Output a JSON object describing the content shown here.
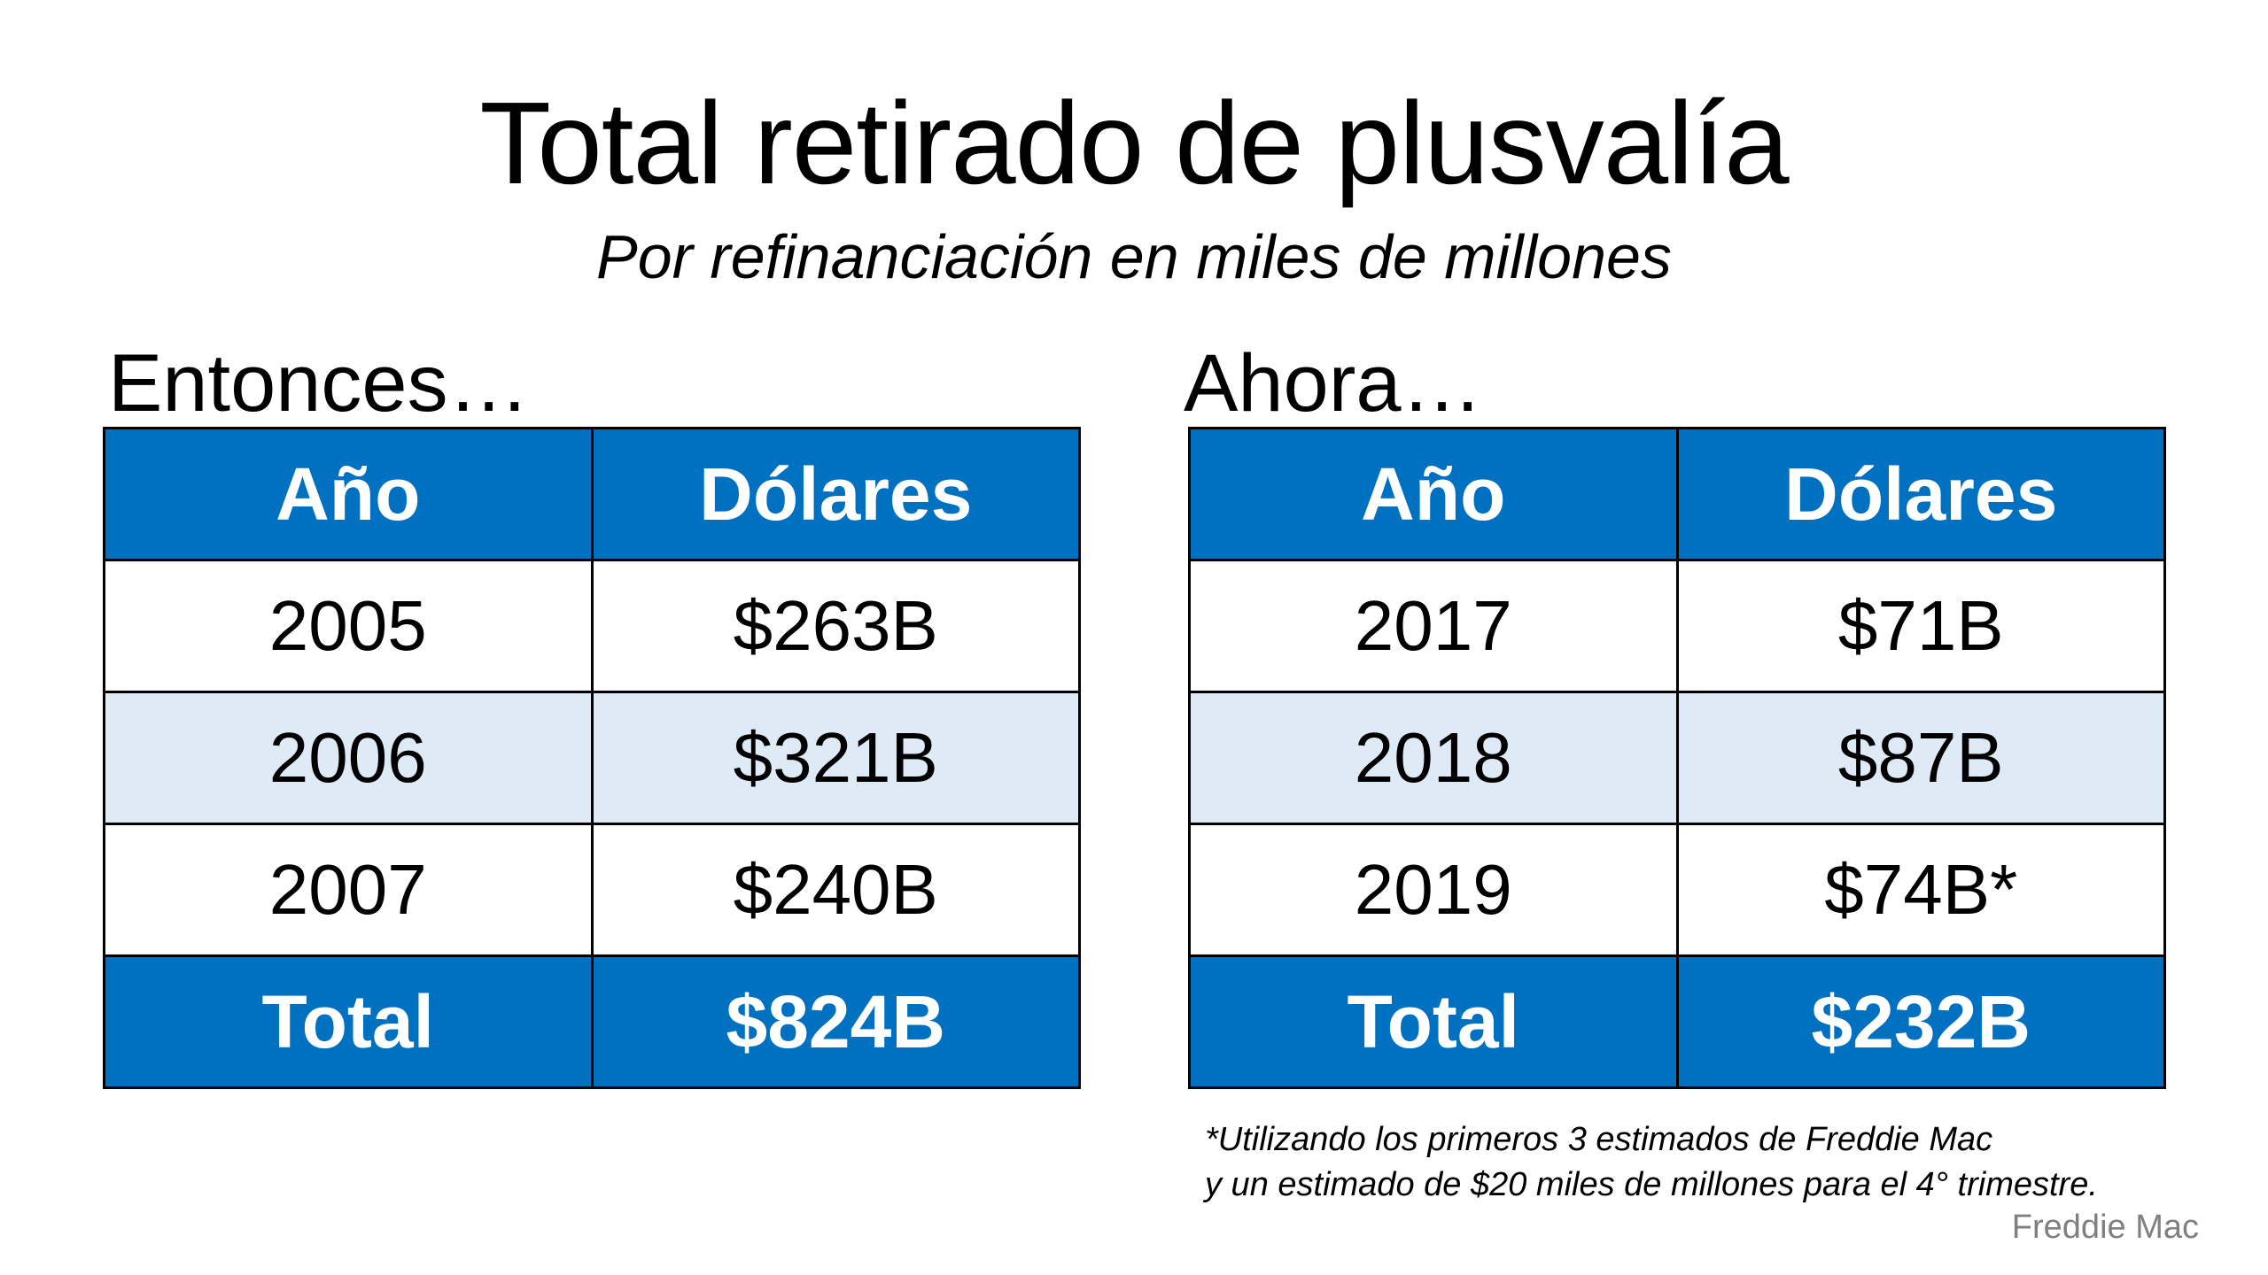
{
  "title": "Total retirado de plusvalía",
  "subtitle": "Por refinanciación en miles de millones",
  "tables": [
    {
      "heading": "Entonces…",
      "columns": [
        "Año",
        "Dólares"
      ],
      "rows": [
        [
          "2005",
          "$263B"
        ],
        [
          "2006",
          "$321B"
        ],
        [
          "2007",
          "$240B"
        ]
      ],
      "total": [
        "Total",
        "$824B"
      ]
    },
    {
      "heading": "Ahora…",
      "columns": [
        "Año",
        "Dólares"
      ],
      "rows": [
        [
          "2017",
          "$71B"
        ],
        [
          "2018",
          "$87B"
        ],
        [
          "2019",
          "$74B*"
        ]
      ],
      "total": [
        "Total",
        "$232B"
      ]
    }
  ],
  "footnote": [
    "*Utilizando los primeros 3 estimados de Freddie Mac",
    "y un estimado de $20 miles de millones para el 4° trimestre."
  ],
  "source": "Freddie Mac",
  "colors": {
    "header_blue": "#0070C0",
    "alt_row": "#DEEAF6"
  }
}
